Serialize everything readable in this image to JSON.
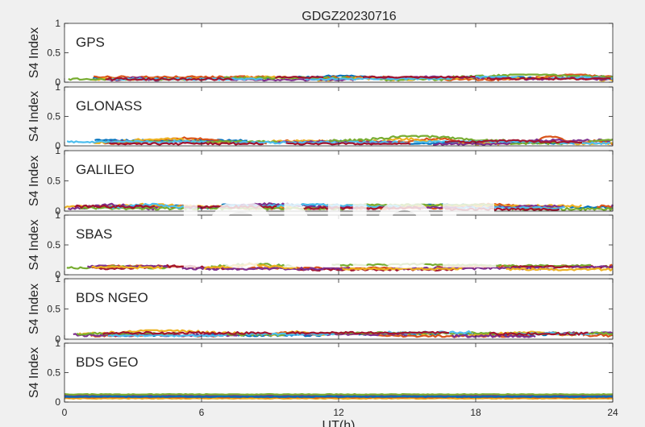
{
  "figure": {
    "title": "GDGZ20230716",
    "watermark": "IONISE",
    "xlabel": "UT(h)",
    "background": "#f0f0f0",
    "axes_color": "#262626",
    "grid": false
  },
  "chart_data": [
    {
      "type": "line",
      "panel": "GPS",
      "ylabel": "S4 Index",
      "xlim": [
        0,
        24
      ],
      "ylim": [
        0,
        1
      ],
      "xticks": [
        0,
        6,
        12,
        18,
        24
      ],
      "yticks": [
        0,
        0.5,
        1
      ],
      "series_colors": [
        "#0072BD",
        "#D95319",
        "#EDB120",
        "#7E2F8E",
        "#77AC30",
        "#4DBEEE",
        "#A2142F"
      ],
      "level_range": [
        0.03,
        0.13
      ],
      "typical_level": 0.07
    },
    {
      "type": "line",
      "panel": "GLONASS",
      "ylabel": "S4 Index",
      "xlim": [
        0,
        24
      ],
      "ylim": [
        0,
        1
      ],
      "xticks": [
        0,
        6,
        12,
        18,
        24
      ],
      "yticks": [
        0,
        0.5,
        1
      ],
      "series_colors": [
        "#0072BD",
        "#D95319",
        "#EDB120",
        "#7E2F8E",
        "#77AC30",
        "#4DBEEE",
        "#A2142F"
      ],
      "level_range": [
        0.03,
        0.17
      ],
      "typical_level": 0.07
    },
    {
      "type": "line",
      "panel": "GALILEO",
      "ylabel": "S4 Index",
      "xlim": [
        0,
        24
      ],
      "ylim": [
        0,
        1
      ],
      "xticks": [
        0,
        6,
        12,
        18,
        24
      ],
      "yticks": [
        0,
        0.5,
        1
      ],
      "series_colors": [
        "#0072BD",
        "#D95319",
        "#EDB120",
        "#7E2F8E",
        "#77AC30",
        "#4DBEEE",
        "#A2142F"
      ],
      "level_range": [
        0.03,
        0.16
      ],
      "typical_level": 0.08
    },
    {
      "type": "line",
      "panel": "SBAS",
      "ylabel": "S4 Index",
      "xlim": [
        0,
        24
      ],
      "ylim": [
        0,
        1
      ],
      "xticks": [
        0,
        6,
        12,
        18,
        24
      ],
      "yticks": [
        0,
        0.5,
        1
      ],
      "series_colors": [
        "#D95319",
        "#77AC30",
        "#A2142F",
        "#7E2F8E",
        "#EDB120"
      ],
      "level_range": [
        0.08,
        0.22
      ],
      "typical_level": 0.13
    },
    {
      "type": "line",
      "panel": "BDS NGEO",
      "ylabel": "S4 Index",
      "xlim": [
        0,
        24
      ],
      "ylim": [
        0,
        1
      ],
      "xticks": [
        0,
        6,
        12,
        18,
        24
      ],
      "yticks": [
        0,
        0.5,
        1
      ],
      "series_colors": [
        "#0072BD",
        "#D95319",
        "#EDB120",
        "#7E2F8E",
        "#77AC30",
        "#4DBEEE",
        "#A2142F"
      ],
      "level_range": [
        0.05,
        0.15
      ],
      "typical_level": 0.09
    },
    {
      "type": "line",
      "panel": "BDS GEO",
      "ylabel": "S4 Index",
      "xlim": [
        0,
        24
      ],
      "ylim": [
        0,
        1
      ],
      "xticks": [
        0,
        6,
        12,
        18,
        24
      ],
      "yticks": [
        0,
        0.5,
        1
      ],
      "series_colors": [
        "#EDB120",
        "#D95319",
        "#A2142F",
        "#7E2F8E",
        "#77AC30",
        "#0072BD"
      ],
      "series_levels": [
        0.06,
        0.08,
        0.1,
        0.11,
        0.13,
        0.09
      ],
      "level_range": [
        0.05,
        0.14
      ],
      "typical_level": 0.1
    }
  ]
}
